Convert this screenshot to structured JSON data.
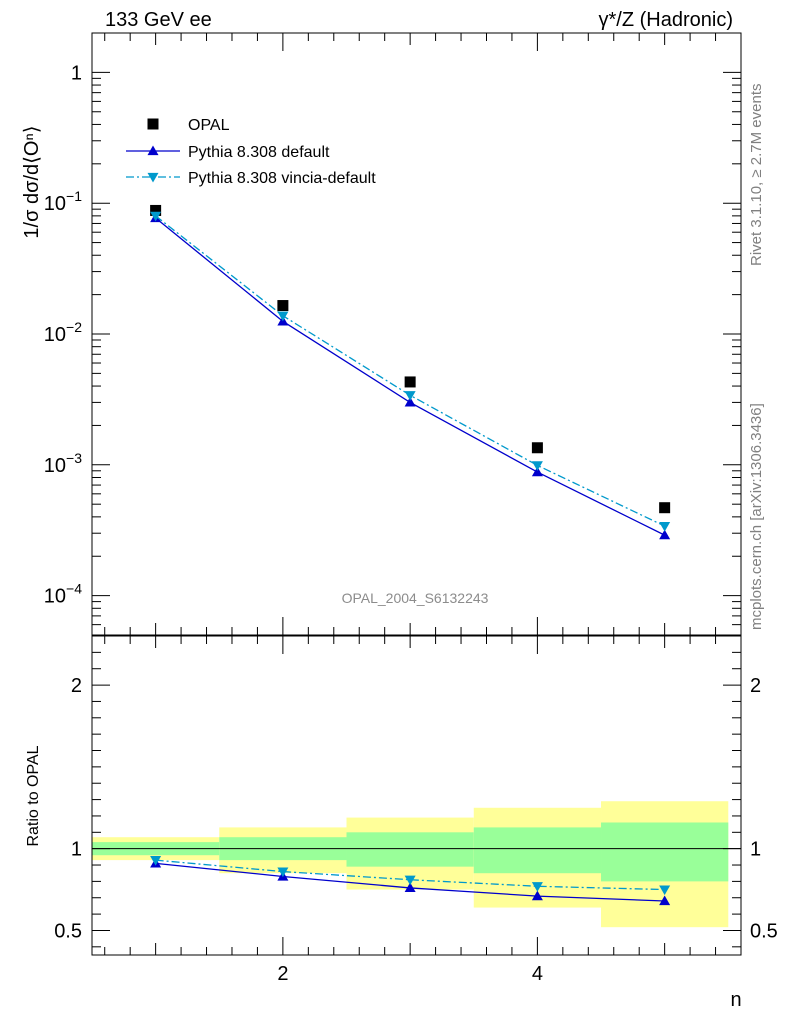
{
  "header": {
    "left": "133 GeV ee",
    "right": "γ*/Z (Hadronic)"
  },
  "side_text": {
    "upper": "Rivet 3.1.10, ≥ 2.7M events",
    "lower": "mcplots.cern.ch [arXiv:1306.3436]"
  },
  "watermark": "OPAL_2004_S6132243",
  "colors": {
    "data": "#000000",
    "pythia_default": "#0000cc",
    "vincia": "#0099cc",
    "band_inner": "#99ff99",
    "band_outer": "#ffff99"
  },
  "chart_data": [
    {
      "type": "line",
      "panel": "main",
      "ylabel": "1/σ dσ/d⟨Oⁿ⟩",
      "yscale": "log",
      "ylim": [
        5e-05,
        2
      ],
      "xlim": [
        0.5,
        5.6
      ],
      "yticks": [
        {
          "v": 1,
          "m": "1",
          "e": ""
        },
        {
          "v": 0.1,
          "m": "10",
          "e": "−1"
        },
        {
          "v": 0.01,
          "m": "10",
          "e": "−2"
        },
        {
          "v": 0.001,
          "m": "10",
          "e": "−3"
        },
        {
          "v": 0.0001,
          "m": "10",
          "e": "−4"
        }
      ],
      "legend_position": "top-left",
      "x": [
        1,
        2,
        3,
        4,
        5
      ],
      "series": [
        {
          "name": "OPAL",
          "marker": "square",
          "values": [
            0.088,
            0.0165,
            0.0043,
            0.00135,
            0.00047
          ]
        },
        {
          "name": "Pythia 8.308 default",
          "marker": "triangle-up",
          "line": "solid",
          "values": [
            0.077,
            0.0125,
            0.003,
            0.00088,
            0.00029
          ]
        },
        {
          "name": "Pythia 8.308 vincia-default",
          "marker": "triangle-down",
          "line": "dash-dot",
          "values": [
            0.08,
            0.0138,
            0.0034,
            0.00099,
            0.00034
          ]
        }
      ]
    },
    {
      "type": "line",
      "panel": "ratio",
      "ylabel": "Ratio to OPAL",
      "xlabel": "n",
      "ylim": [
        0.35,
        2.3
      ],
      "xlim": [
        0.5,
        5.6
      ],
      "yticks": [
        {
          "v": 0.5,
          "label": "0.5"
        },
        {
          "v": 1,
          "label": "1"
        },
        {
          "v": 2,
          "label": "2"
        }
      ],
      "xticks": [
        {
          "v": 2,
          "label": "2"
        },
        {
          "v": 4,
          "label": "4"
        }
      ],
      "reference": 1,
      "bins": [
        {
          "lo": 0.5,
          "hi": 1.5,
          "stat": [
            0.96,
            1.04
          ],
          "total": [
            0.93,
            1.07
          ]
        },
        {
          "lo": 1.5,
          "hi": 2.5,
          "stat": [
            0.93,
            1.07
          ],
          "total": [
            0.85,
            1.13
          ]
        },
        {
          "lo": 2.5,
          "hi": 3.5,
          "stat": [
            0.89,
            1.1
          ],
          "total": [
            0.75,
            1.19
          ]
        },
        {
          "lo": 3.5,
          "hi": 4.5,
          "stat": [
            0.85,
            1.13
          ],
          "total": [
            0.64,
            1.25
          ]
        },
        {
          "lo": 4.5,
          "hi": 5.5,
          "stat": [
            0.8,
            1.16
          ],
          "total": [
            0.52,
            1.29
          ]
        }
      ],
      "x": [
        1,
        2,
        3,
        4,
        5
      ],
      "series": [
        {
          "name": "Pythia 8.308 default",
          "marker": "triangle-up",
          "line": "solid",
          "values": [
            0.91,
            0.83,
            0.76,
            0.71,
            0.68
          ]
        },
        {
          "name": "Pythia 8.308 vincia-default",
          "marker": "triangle-down",
          "line": "dash-dot",
          "values": [
            0.93,
            0.86,
            0.81,
            0.77,
            0.75
          ]
        }
      ]
    }
  ]
}
